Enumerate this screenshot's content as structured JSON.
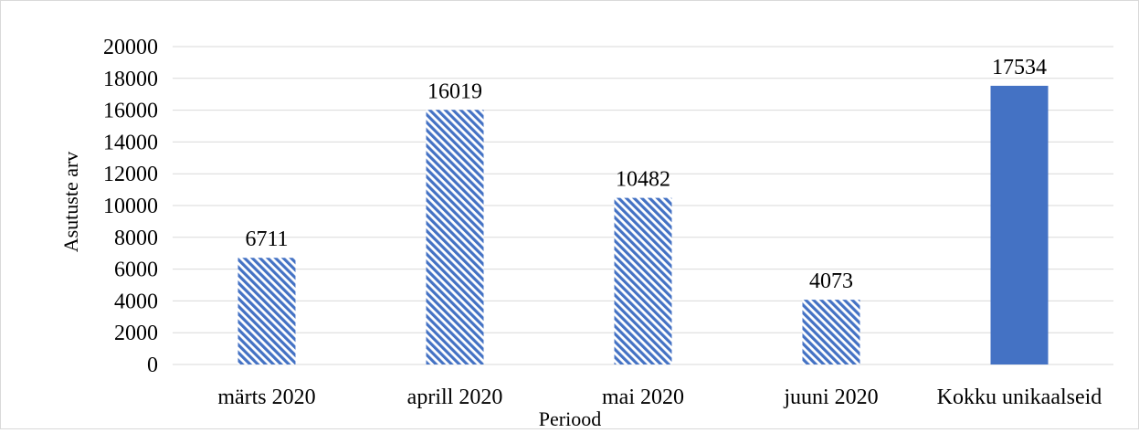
{
  "chart_data": {
    "type": "bar",
    "categories": [
      "märts 2020",
      "aprill 2020",
      "mai 2020",
      "juuni 2020",
      "Kokku unikaalseid"
    ],
    "values": [
      6711,
      16019,
      10482,
      4073,
      17534
    ],
    "bar_styles": [
      "hatched",
      "hatched",
      "hatched",
      "hatched",
      "solid"
    ],
    "title": "",
    "xlabel": "Periood",
    "ylabel": "Asutuste arv",
    "ylim": [
      0,
      20000
    ],
    "ytick_step": 2000,
    "yticks": [
      "0",
      "2000",
      "4000",
      "6000",
      "8000",
      "10000",
      "12000",
      "14000",
      "16000",
      "18000",
      "20000"
    ],
    "data_labels": [
      "6711",
      "16019",
      "10482",
      "4073",
      "17534"
    ],
    "grid": true,
    "legend": "none",
    "colors": {
      "bar": "#4472c4",
      "grid": "#d9d9d9"
    }
  }
}
